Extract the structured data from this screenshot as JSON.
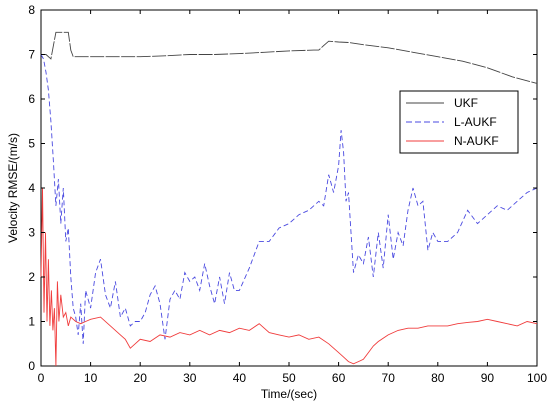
{
  "chart_data": {
    "type": "line",
    "title": "",
    "xlabel": "Time/(sec)",
    "ylabel": "Velocity RMSE/(m/s)",
    "xlim": [
      0,
      100
    ],
    "ylim": [
      0,
      8
    ],
    "xticks": [
      0,
      10,
      20,
      30,
      40,
      50,
      60,
      70,
      80,
      90,
      100
    ],
    "yticks": [
      0,
      1,
      2,
      3,
      4,
      5,
      6,
      7,
      8
    ],
    "grid": false,
    "legend_position": "right",
    "series": [
      {
        "name": "UKF",
        "color": "#444444",
        "dash": "solid",
        "x": [
          0,
          1,
          2,
          2.5,
          3,
          4,
          5,
          5.5,
          6,
          6.5,
          7,
          8,
          9,
          10,
          15,
          20,
          25,
          30,
          35,
          40,
          45,
          50,
          55,
          56,
          57,
          58,
          60,
          62,
          65,
          70,
          75,
          80,
          85,
          90,
          95,
          100
        ],
        "y": [
          7.0,
          7.0,
          6.9,
          7.2,
          7.5,
          7.5,
          7.5,
          7.5,
          7.1,
          6.95,
          6.95,
          6.95,
          6.95,
          6.95,
          6.95,
          6.95,
          6.97,
          7.0,
          7.0,
          7.02,
          7.05,
          7.08,
          7.1,
          7.1,
          7.2,
          7.3,
          7.28,
          7.27,
          7.22,
          7.15,
          7.05,
          6.95,
          6.85,
          6.7,
          6.5,
          6.35
        ]
      },
      {
        "name": "L-AUKF",
        "color": "#4a4ae0",
        "dash": "dashed",
        "x": [
          0,
          0.5,
          1,
          1.5,
          2,
          2.5,
          3,
          3.5,
          4,
          4.5,
          5,
          5.5,
          6,
          6.5,
          7,
          7.5,
          8,
          8.5,
          9,
          10,
          11,
          12,
          13,
          14,
          15,
          16,
          17,
          18,
          19,
          20,
          21,
          22,
          23,
          24,
          25,
          26,
          27,
          28,
          29,
          30,
          31,
          32,
          33,
          34,
          35,
          36,
          37,
          38,
          39,
          40,
          42,
          44,
          46,
          48,
          50,
          52,
          54,
          56,
          57,
          58,
          59,
          60,
          60.5,
          61,
          61.5,
          62,
          63,
          64,
          65,
          66,
          67,
          68,
          69,
          70,
          71,
          72,
          73,
          74,
          75,
          76,
          77,
          78,
          79,
          80,
          82,
          84,
          86,
          88,
          90,
          92,
          94,
          96,
          98,
          100
        ],
        "y": [
          7.0,
          6.9,
          6.6,
          6.2,
          5.5,
          4.6,
          3.6,
          4.2,
          3.2,
          4.0,
          2.8,
          3.1,
          2.0,
          1.3,
          1.1,
          0.7,
          1.4,
          0.5,
          1.7,
          1.3,
          2.1,
          2.4,
          1.6,
          1.3,
          1.9,
          1.1,
          1.3,
          0.9,
          1.0,
          1.0,
          1.2,
          1.6,
          1.8,
          1.4,
          0.6,
          1.5,
          1.7,
          1.5,
          2.1,
          1.9,
          2.0,
          1.7,
          2.3,
          1.8,
          1.4,
          2.0,
          1.4,
          2.1,
          1.7,
          1.7,
          2.2,
          2.8,
          2.8,
          3.1,
          3.2,
          3.4,
          3.5,
          3.7,
          3.6,
          4.3,
          3.9,
          4.5,
          5.3,
          4.8,
          3.7,
          3.9,
          2.1,
          2.5,
          2.3,
          2.9,
          2.0,
          3.0,
          2.2,
          3.4,
          2.4,
          3.0,
          2.7,
          3.5,
          4.0,
          3.6,
          3.7,
          2.6,
          3.0,
          2.8,
          2.8,
          3.0,
          3.5,
          3.2,
          3.4,
          3.6,
          3.5,
          3.7,
          3.9,
          4.0
        ]
      },
      {
        "name": "N-AUKF",
        "color": "#f03c3c",
        "dash": "solid",
        "x": [
          0,
          0.3,
          0.6,
          0.9,
          1.2,
          1.5,
          1.8,
          2.1,
          2.4,
          2.7,
          3.0,
          3.3,
          3.6,
          4.0,
          4.5,
          5.0,
          5.5,
          6.0,
          7,
          8,
          9,
          10,
          12,
          14,
          16,
          17,
          18,
          19,
          20,
          22,
          24,
          26,
          28,
          30,
          32,
          34,
          36,
          38,
          40,
          42,
          44,
          46,
          48,
          50,
          52,
          54,
          56,
          58,
          60,
          61,
          62,
          63,
          64,
          65,
          66,
          67,
          68,
          70,
          72,
          74,
          76,
          78,
          80,
          82,
          84,
          86,
          88,
          90,
          92,
          94,
          96,
          98,
          100
        ],
        "y": [
          2.0,
          4.0,
          1.2,
          3.0,
          1.0,
          2.4,
          0.9,
          1.7,
          0.8,
          1.3,
          0.0,
          1.9,
          1.0,
          1.6,
          1.1,
          1.2,
          0.9,
          1.1,
          1.0,
          0.95,
          1.0,
          1.05,
          1.1,
          0.9,
          0.7,
          0.6,
          0.4,
          0.5,
          0.6,
          0.55,
          0.7,
          0.65,
          0.75,
          0.7,
          0.8,
          0.7,
          0.8,
          0.75,
          0.85,
          0.8,
          0.95,
          0.75,
          0.7,
          0.65,
          0.7,
          0.6,
          0.65,
          0.5,
          0.3,
          0.2,
          0.1,
          0.05,
          0.1,
          0.15,
          0.3,
          0.45,
          0.55,
          0.7,
          0.8,
          0.85,
          0.85,
          0.9,
          0.9,
          0.9,
          0.95,
          0.98,
          1.0,
          1.05,
          1.0,
          0.95,
          0.9,
          1.0,
          0.95
        ]
      }
    ]
  }
}
